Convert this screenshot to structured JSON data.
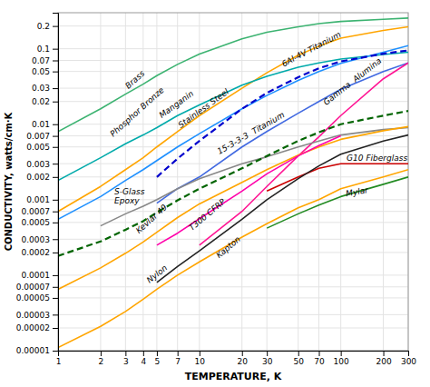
{
  "chart_data": {
    "type": "line",
    "xlabel": "TEMPERATURE, K",
    "ylabel": "CONDUCTIVITY, watts/cm·K",
    "log": true,
    "grid": true,
    "xlim": [
      1,
      300
    ],
    "ylim": [
      1e-05,
      0.3
    ],
    "xticks": [
      1,
      2,
      3,
      4,
      5,
      7,
      10,
      20,
      30,
      50,
      70,
      100,
      200,
      300
    ],
    "yticks": [
      0.2,
      0.1,
      0.07,
      0.05,
      0.03,
      0.02,
      0.01,
      0.007,
      0.005,
      0.003,
      0.002,
      0.001,
      0.0007,
      0.0005,
      0.0003,
      0.0002,
      0.0001,
      7e-05,
      5e-05,
      3e-05,
      2e-05,
      1e-05
    ],
    "series": [
      {
        "color": "#3cb371",
        "line_style": "solid",
        "x": [
          1,
          2,
          3,
          4,
          5,
          7,
          10,
          20,
          30,
          50,
          70,
          100,
          200,
          300
        ],
        "values": [
          0.008,
          0.016,
          0.025,
          0.034,
          0.044,
          0.062,
          0.085,
          0.135,
          0.165,
          0.195,
          0.215,
          0.23,
          0.245,
          0.255
        ]
      },
      {
        "color": "#FFA500",
        "line_style": "solid",
        "x": [
          1,
          2,
          3,
          4,
          5,
          7,
          10,
          20,
          30,
          50,
          70,
          100,
          200,
          300
        ],
        "values": [
          0.0007,
          0.0015,
          0.0025,
          0.0036,
          0.005,
          0.008,
          0.013,
          0.03,
          0.048,
          0.082,
          0.108,
          0.138,
          0.175,
          0.195
        ]
      },
      {
        "color": "#00AAAA",
        "line_style": "solid",
        "x": [
          1,
          2,
          3,
          4,
          5,
          7,
          10,
          20,
          30,
          50,
          70,
          100,
          200,
          300
        ],
        "values": [
          0.0018,
          0.0036,
          0.0055,
          0.0072,
          0.009,
          0.013,
          0.018,
          0.033,
          0.043,
          0.057,
          0.065,
          0.073,
          0.084,
          0.09
        ]
      },
      {
        "color": "#1E90FF",
        "line_style": "solid",
        "x": [
          1,
          2,
          3,
          4,
          5,
          7,
          10,
          20,
          30,
          50,
          70,
          100,
          200,
          300
        ],
        "values": [
          0.00055,
          0.0011,
          0.0018,
          0.0025,
          0.0033,
          0.005,
          0.0075,
          0.016,
          0.024,
          0.038,
          0.05,
          0.064,
          0.09,
          0.11
        ]
      },
      {
        "color": "#0000CD",
        "line_style": "dashed",
        "x": [
          5,
          7,
          10,
          20,
          30,
          50,
          70,
          100,
          200,
          300
        ],
        "values": [
          0.002,
          0.0035,
          0.006,
          0.016,
          0.026,
          0.042,
          0.055,
          0.068,
          0.086,
          0.095
        ]
      },
      {
        "color": "#4169E1",
        "line_style": "solid",
        "x": [
          5,
          7,
          10,
          20,
          30,
          50,
          70,
          100,
          200,
          300
        ],
        "values": [
          0.0009,
          0.0014,
          0.002,
          0.005,
          0.008,
          0.014,
          0.02,
          0.029,
          0.05,
          0.065
        ]
      },
      {
        "color": "#FF1493",
        "line_style": "solid",
        "x": [
          10,
          20,
          30,
          50,
          70,
          100,
          200,
          300
        ],
        "values": [
          0.00025,
          0.0007,
          0.0015,
          0.0038,
          0.0068,
          0.013,
          0.04,
          0.065
        ]
      },
      {
        "color": "#CC0000",
        "line_style": "solid",
        "x": [
          30,
          50,
          70,
          100,
          150,
          200,
          300
        ],
        "values": [
          0.0013,
          0.002,
          0.0026,
          0.003,
          0.003,
          0.003,
          0.003
        ]
      },
      {
        "color": "#888888",
        "line_style": "solid",
        "x": [
          2,
          3,
          4,
          5,
          7,
          10,
          20,
          30,
          50,
          70,
          100,
          200,
          300
        ],
        "values": [
          0.00045,
          0.00065,
          0.00082,
          0.001,
          0.0014,
          0.0019,
          0.003,
          0.0037,
          0.005,
          0.006,
          0.0072,
          0.0085,
          0.009
        ]
      },
      {
        "color": "#FFA500",
        "line_style": "solid",
        "x": [
          1,
          2,
          3,
          4,
          5,
          7,
          10,
          20,
          30,
          50,
          70,
          100,
          200,
          300
        ],
        "values": [
          6.5e-05,
          0.000125,
          0.000195,
          0.000275,
          0.00037,
          0.00058,
          0.00088,
          0.0017,
          0.0025,
          0.0039,
          0.005,
          0.0063,
          0.0082,
          0.0093
        ]
      },
      {
        "color": "#FFA500",
        "line_style": "solid",
        "x": [
          1,
          2,
          3,
          4,
          5,
          7,
          10,
          20,
          30,
          50,
          70,
          100,
          200,
          300
        ],
        "values": [
          1.1e-05,
          2.1e-05,
          3.3e-05,
          4.8e-05,
          6.5e-05,
          0.0001,
          0.00015,
          0.00032,
          0.00048,
          0.00078,
          0.001,
          0.0014,
          0.002,
          0.0025
        ]
      },
      {
        "color": "#FF00AA",
        "line_style": "solid",
        "x": [
          5,
          7,
          10,
          20,
          30,
          50,
          70,
          100
        ],
        "values": [
          0.00025,
          0.00036,
          0.00056,
          0.0013,
          0.0022,
          0.0038,
          0.0052,
          0.007
        ]
      },
      {
        "color": "#222222",
        "line_style": "solid",
        "x": [
          5,
          7,
          10,
          20,
          30,
          50,
          70,
          100,
          200,
          300
        ],
        "values": [
          8e-05,
          0.00013,
          0.00021,
          0.00055,
          0.001,
          0.0019,
          0.0028,
          0.004,
          0.006,
          0.0072
        ]
      },
      {
        "color": "#228B22",
        "line_style": "solid",
        "x": [
          30,
          50,
          70,
          100,
          200,
          300
        ],
        "values": [
          0.00042,
          0.00065,
          0.00085,
          0.0011,
          0.0016,
          0.002
        ]
      },
      {
        "color": "#006400",
        "line_style": "dashed",
        "x": [
          1,
          2,
          3,
          4,
          5,
          7,
          10,
          20,
          30,
          50,
          70,
          100,
          200,
          300
        ],
        "values": [
          0.00018,
          0.00028,
          0.0004,
          0.00052,
          0.00068,
          0.00098,
          0.0014,
          0.0026,
          0.0038,
          0.006,
          0.0078,
          0.01,
          0.013,
          0.015
        ]
      }
    ],
    "annotations": [
      {
        "text": "Brass",
        "x": 3.2,
        "y": 0.028,
        "color": "#000000"
      },
      {
        "text": "Phosphor Bronze",
        "x": 2.5,
        "y": 0.0065,
        "color": "#000000"
      },
      {
        "text": "Manganin",
        "x": 5.5,
        "y": 0.0115,
        "color": "#000000"
      },
      {
        "text": "Stainless Steel",
        "x": 7.5,
        "y": 0.0085,
        "color": "#000000"
      },
      {
        "text": "6Al-4V Titanium",
        "x": 40,
        "y": 0.055,
        "color": "#000000"
      },
      {
        "text": "15-3-3-3  Titanium",
        "x": 14,
        "y": 0.0038,
        "color": "#000000"
      },
      {
        "text": "Gamma  Alumina",
        "x": 80,
        "y": 0.017,
        "color": "#000000"
      },
      {
        "text": "G10 Fiberglass",
        "x": 110,
        "y": 0.0031,
        "color": "#000000"
      },
      {
        "text": "S-Glass\nEpoxy",
        "x": 2.5,
        "y": 0.00085,
        "color": "#000000"
      },
      {
        "text": "Kevlar 49",
        "x": 3.8,
        "y": 0.00034,
        "color": "#000000"
      },
      {
        "text": "Nylon",
        "x": 4.5,
        "y": 7.5e-05,
        "color": "#000000"
      },
      {
        "text": "T300 CFRP",
        "x": 9,
        "y": 0.00037,
        "color": "#000000"
      },
      {
        "text": "Kapton",
        "x": 14,
        "y": 0.00016,
        "color": "#000000"
      },
      {
        "text": "Mylar",
        "x": 110,
        "y": 0.00105,
        "color": "#000000"
      }
    ]
  }
}
